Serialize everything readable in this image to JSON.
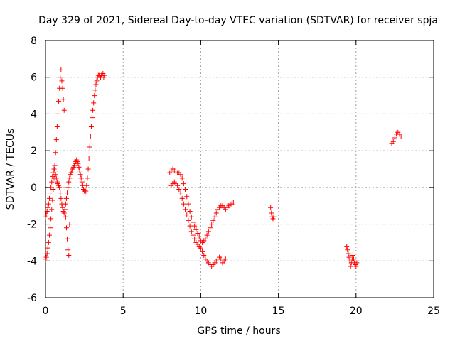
{
  "chart_data": {
    "type": "scatter",
    "title": "Day 329 of 2021, Sidereal Day-to-day VTEC variation (SDTVAR) for receiver spja",
    "xlabel": "GPS time / hours",
    "ylabel": "SDTVAR / TECUs",
    "xlim": [
      0,
      25
    ],
    "ylim": [
      -6,
      8
    ],
    "x_ticks": [
      0,
      5,
      10,
      15,
      20,
      25
    ],
    "y_ticks": [
      -6,
      -4,
      -2,
      0,
      2,
      4,
      6,
      8
    ],
    "x_tick_labels": [
      "0",
      "5",
      "10",
      "15",
      "20",
      "25"
    ],
    "y_tick_labels": [
      "-6",
      "-4",
      "-2",
      "0",
      "2",
      "4",
      "6",
      "8"
    ],
    "grid": true,
    "marker": "+",
    "color": "#ff0000",
    "series": [
      {
        "name": "segment-1",
        "x": [
          0.0,
          0.05,
          0.1,
          0.15,
          0.2,
          0.25,
          0.3,
          0.35,
          0.4,
          0.45,
          0.5,
          0.55,
          0.6,
          0.65,
          0.7,
          0.75,
          0.8,
          0.85,
          0.9,
          0.95,
          1.0,
          1.05,
          1.1,
          1.15,
          1.2,
          1.25,
          1.3,
          1.35,
          1.4,
          1.45,
          1.5,
          1.55,
          1.6,
          1.65,
          1.7,
          1.75,
          1.8,
          1.85,
          1.9,
          1.95,
          2.0,
          2.05,
          2.1,
          2.15,
          2.2,
          2.25,
          2.3,
          2.35,
          2.4,
          2.45,
          2.5,
          2.55,
          2.6,
          2.65,
          2.7,
          2.75,
          2.8,
          2.85,
          2.9,
          2.95,
          3.0,
          3.05,
          3.1,
          3.15,
          3.2,
          3.25,
          3.3,
          3.35,
          3.4,
          3.45,
          3.5,
          3.55,
          3.6,
          3.65,
          3.7,
          3.75,
          3.8
        ],
        "y": [
          -1.6,
          -1.5,
          -1.3,
          -1.1,
          -0.9,
          -0.6,
          -0.3,
          0.0,
          0.3,
          0.6,
          0.8,
          1.0,
          0.9,
          0.7,
          0.5,
          0.3,
          0.2,
          0.1,
          0.0,
          -0.3,
          -0.6,
          -0.9,
          -1.1,
          -1.3,
          -1.4,
          -1.2,
          -0.9,
          -0.6,
          -0.3,
          0.0,
          0.3,
          0.5,
          0.7,
          0.8,
          0.9,
          1.0,
          1.1,
          1.2,
          1.3,
          1.4,
          1.5,
          1.4,
          1.3,
          1.1,
          0.9,
          0.7,
          0.5,
          0.3,
          0.1,
          -0.1,
          -0.2,
          -0.3,
          -0.2,
          0.1,
          0.5,
          1.0,
          1.6,
          2.2,
          2.8,
          3.3,
          3.8,
          4.2,
          4.6,
          5.0,
          5.3,
          5.6,
          5.8,
          6.0,
          6.1,
          6.1,
          6.1,
          6.0,
          6.1,
          6.1,
          6.2,
          6.0,
          6.1
        ]
      },
      {
        "name": "segment-1-lower",
        "x": [
          0.0,
          0.05,
          0.1,
          0.15,
          0.2,
          0.25,
          0.3,
          0.35,
          0.4,
          0.45,
          0.5,
          0.55,
          0.6,
          0.65,
          0.7,
          0.75,
          0.8,
          0.85,
          0.9,
          0.95,
          1.0,
          1.05,
          1.1,
          1.15,
          1.2
        ],
        "y": [
          -3.9,
          -3.8,
          -3.6,
          -3.3,
          -3.0,
          -2.6,
          -2.2,
          -1.7,
          -1.2,
          -0.7,
          -0.1,
          0.5,
          1.2,
          1.9,
          2.6,
          3.3,
          4.0,
          4.7,
          5.4,
          6.0,
          6.4,
          5.8,
          5.4,
          4.8,
          4.2
        ]
      },
      {
        "name": "segment-1-outliers",
        "x": [
          1.3,
          1.35,
          1.4,
          1.45,
          1.5,
          1.55
        ],
        "y": [
          -1.6,
          -2.2,
          -2.8,
          -3.4,
          -3.7,
          -2.0
        ]
      },
      {
        "name": "segment-2-upper",
        "x": [
          8.0,
          8.1,
          8.2,
          8.3,
          8.4,
          8.5,
          8.6,
          8.7,
          8.8,
          8.9,
          9.0,
          9.1,
          9.2,
          9.3,
          9.4,
          9.5,
          9.6,
          9.7,
          9.8,
          9.9,
          10.0,
          10.1,
          10.2,
          10.3,
          10.4,
          10.5,
          10.6,
          10.7,
          10.8,
          10.9,
          11.0,
          11.1,
          11.2,
          11.3,
          11.4,
          11.5,
          11.6,
          11.7,
          11.8,
          11.9,
          12.0,
          12.1
        ],
        "y": [
          0.8,
          0.9,
          1.0,
          0.9,
          0.9,
          0.8,
          0.8,
          0.7,
          0.5,
          0.2,
          -0.1,
          -0.5,
          -0.9,
          -1.3,
          -1.6,
          -1.9,
          -2.1,
          -2.3,
          -2.5,
          -2.7,
          -2.9,
          -3.0,
          -2.9,
          -2.8,
          -2.6,
          -2.4,
          -2.2,
          -2.0,
          -1.8,
          -1.6,
          -1.4,
          -1.2,
          -1.1,
          -1.0,
          -1.0,
          -1.1,
          -1.2,
          -1.1,
          -1.0,
          -0.9,
          -0.9,
          -0.8
        ]
      },
      {
        "name": "segment-2-lower",
        "x": [
          8.1,
          8.2,
          8.3,
          8.4,
          8.5,
          8.6,
          8.7,
          8.8,
          8.9,
          9.0,
          9.1,
          9.2,
          9.3,
          9.4,
          9.5,
          9.6,
          9.7,
          9.8,
          9.9,
          10.0,
          10.1,
          10.2,
          10.3,
          10.4,
          10.5,
          10.6,
          10.7,
          10.8,
          10.9,
          11.0,
          11.1,
          11.2,
          11.3,
          11.4,
          11.5,
          11.6
        ],
        "y": [
          0.1,
          0.2,
          0.3,
          0.2,
          0.1,
          -0.1,
          -0.3,
          -0.6,
          -0.9,
          -1.2,
          -1.5,
          -1.8,
          -2.1,
          -2.4,
          -2.6,
          -2.8,
          -3.0,
          -3.1,
          -3.2,
          -3.3,
          -3.5,
          -3.7,
          -3.9,
          -4.0,
          -4.1,
          -4.2,
          -4.3,
          -4.2,
          -4.1,
          -4.0,
          -3.9,
          -3.8,
          -3.9,
          -4.1,
          -4.0,
          -3.9
        ]
      },
      {
        "name": "segment-3",
        "x": [
          14.5,
          14.55,
          14.6,
          14.65,
          14.7
        ],
        "y": [
          -1.1,
          -1.4,
          -1.6,
          -1.7,
          -1.6
        ]
      },
      {
        "name": "segment-4",
        "x": [
          19.4,
          19.45,
          19.5,
          19.55,
          19.6,
          19.65,
          19.7,
          19.75,
          19.8,
          19.85,
          19.9,
          19.95,
          20.0,
          20.05
        ],
        "y": [
          -3.2,
          -3.4,
          -3.6,
          -3.8,
          -4.0,
          -4.3,
          -4.1,
          -3.9,
          -3.7,
          -3.9,
          -4.1,
          -4.2,
          -4.3,
          -4.1
        ]
      },
      {
        "name": "segment-5",
        "x": [
          22.3,
          22.4,
          22.5,
          22.6,
          22.7,
          22.8,
          22.9
        ],
        "y": [
          2.4,
          2.5,
          2.7,
          2.9,
          3.0,
          2.9,
          2.8
        ]
      }
    ]
  }
}
